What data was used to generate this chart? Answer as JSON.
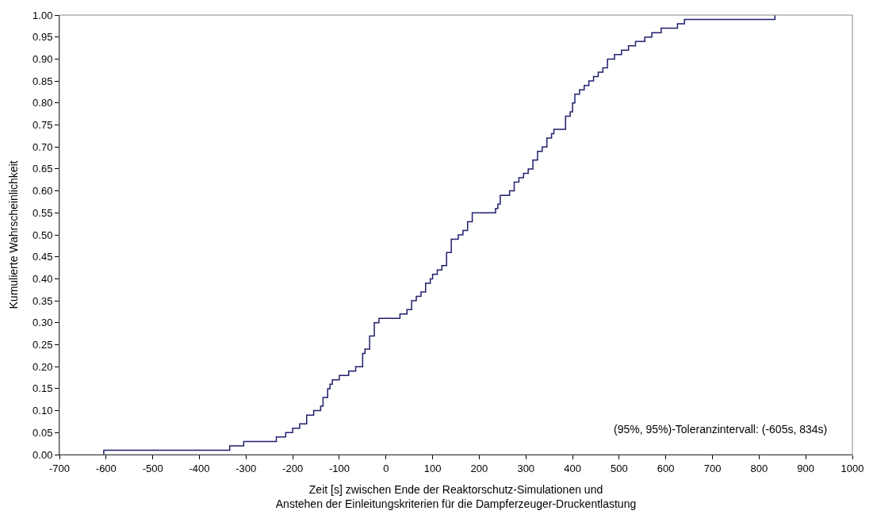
{
  "chart_data": {
    "type": "step",
    "xlabel": "Zeit [s] zwischen Ende der Reaktorschutz-Simulationen und\nAnstehen der Einleitungskriterien für die Dampferzeuger-Druckentlastung",
    "ylabel": "Kumulierte Wahrscheinlichkeit",
    "annotations": [
      "(95%, 95%)-Toleranzintervall: (-605s, 834s)"
    ],
    "x": [
      -605,
      -605,
      -335,
      -305,
      -235,
      -215,
      -200,
      -185,
      -170,
      -155,
      -140,
      -135,
      -125,
      -120,
      -115,
      -100,
      -80,
      -65,
      -50,
      -45,
      -35,
      -25,
      -15,
      30,
      45,
      55,
      65,
      75,
      85,
      95,
      100,
      110,
      120,
      130,
      140,
      155,
      165,
      175,
      185,
      235,
      240,
      245,
      265,
      275,
      285,
      295,
      305,
      315,
      325,
      335,
      345,
      355,
      360,
      385,
      395,
      400,
      405,
      415,
      425,
      435,
      445,
      455,
      465,
      475,
      490,
      505,
      520,
      535,
      555,
      570,
      590,
      625,
      640,
      834
    ],
    "series": [
      {
        "color": "#1f1f6e",
        "values": [
          0,
          0.01,
          0.02,
          0.03,
          0.04,
          0.05,
          0.06,
          0.07,
          0.09,
          0.1,
          0.11,
          0.13,
          0.15,
          0.16,
          0.17,
          0.18,
          0.19,
          0.2,
          0.23,
          0.24,
          0.27,
          0.3,
          0.31,
          0.32,
          0.33,
          0.35,
          0.36,
          0.37,
          0.39,
          0.4,
          0.41,
          0.42,
          0.43,
          0.46,
          0.49,
          0.5,
          0.51,
          0.53,
          0.55,
          0.56,
          0.57,
          0.59,
          0.6,
          0.62,
          0.63,
          0.64,
          0.65,
          0.67,
          0.69,
          0.7,
          0.72,
          0.73,
          0.74,
          0.77,
          0.78,
          0.8,
          0.82,
          0.83,
          0.84,
          0.85,
          0.86,
          0.87,
          0.88,
          0.9,
          0.91,
          0.92,
          0.93,
          0.94,
          0.95,
          0.96,
          0.97,
          0.98,
          0.99,
          1.0
        ]
      }
    ],
    "xlim": [
      -700,
      1000
    ],
    "xticks": [
      -700,
      -600,
      -500,
      -400,
      -300,
      -200,
      -100,
      0,
      100,
      200,
      300,
      400,
      500,
      600,
      700,
      800,
      900,
      1000
    ],
    "ylim": [
      0,
      1
    ],
    "yticks": [
      {
        "value": 0,
        "label": "0.00"
      },
      {
        "value": 0.05,
        "label": "0.05"
      },
      {
        "value": 0.1,
        "label": "0.10"
      },
      {
        "value": 0.15,
        "label": "0.15"
      },
      {
        "value": 0.2,
        "label": "0.20"
      },
      {
        "value": 0.25,
        "label": "0.25"
      },
      {
        "value": 0.3,
        "label": "0.30"
      },
      {
        "value": 0.35,
        "label": "0.35"
      },
      {
        "value": 0.4,
        "label": "0.40"
      },
      {
        "value": 0.45,
        "label": "0.45"
      },
      {
        "value": 0.5,
        "label": "0.50"
      },
      {
        "value": 0.55,
        "label": "0.55"
      },
      {
        "value": 0.6,
        "label": "0.60"
      },
      {
        "value": 0.65,
        "label": "0.65"
      },
      {
        "value": 0.7,
        "label": "0.70"
      },
      {
        "value": 0.75,
        "label": "0.75"
      },
      {
        "value": 0.8,
        "label": "0.80"
      },
      {
        "value": 0.85,
        "label": "0.85"
      },
      {
        "value": 0.9,
        "label": "0.90"
      },
      {
        "value": 0.95,
        "label": "0.95"
      },
      {
        "value": 1,
        "label": "1.00"
      }
    ]
  }
}
